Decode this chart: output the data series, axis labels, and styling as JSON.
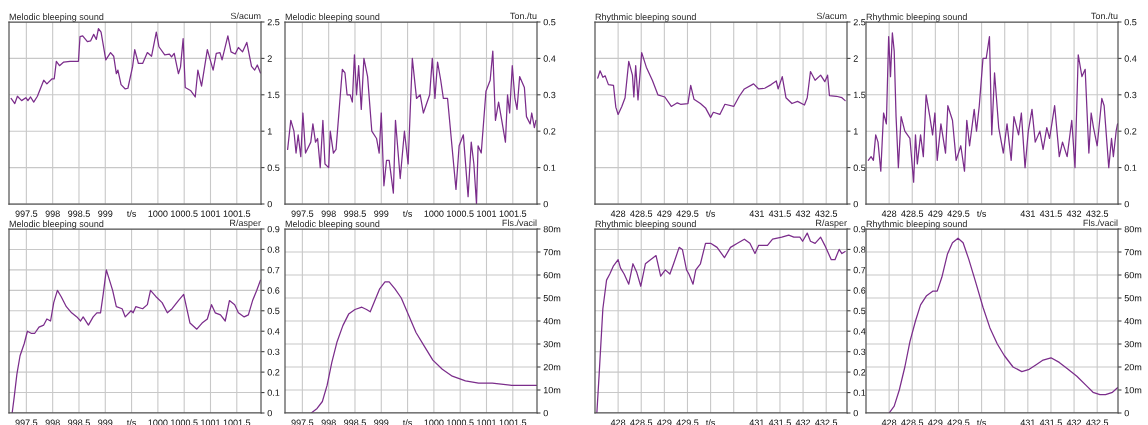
{
  "chart_data": [
    {
      "type": "line",
      "title": "Melodic bleeping sound",
      "ylabel": "S/acum",
      "grid": true,
      "xlim": [
        997.17,
        1001.96
      ],
      "ylim": [
        0,
        2.5
      ],
      "xticks": [
        997.5,
        998,
        998.5,
        999,
        {
          "value": 999.5,
          "label": "t/s"
        },
        1000,
        1000.5,
        1001,
        1001.5
      ],
      "yticks": [
        0,
        0.5,
        1,
        1.5,
        2,
        2.5
      ],
      "x": [
        997.21,
        997.28,
        997.33,
        997.41,
        997.49,
        997.53,
        997.58,
        997.64,
        997.71,
        997.83,
        997.89,
        997.99,
        998.03,
        998.07,
        998.13,
        998.21,
        998.33,
        998.47,
        998.49,
        998.52,
        998.57,
        998.66,
        998.72,
        998.78,
        998.83,
        998.87,
        998.92,
        999.01,
        999.1,
        999.16,
        999.21,
        999.24,
        999.3,
        999.38,
        999.43,
        999.52,
        999.56,
        999.63,
        999.71,
        999.8,
        999.88,
        999.97,
        1000.02,
        1000.13,
        1000.22,
        1000.26,
        1000.31,
        1000.39,
        1000.43,
        1000.48,
        1000.52,
        1000.62,
        1000.71,
        1000.76,
        1000.83,
        1000.94,
        1001.05,
        1001.11,
        1001.18,
        1001.22,
        1001.33,
        1001.39,
        1001.47,
        1001.53,
        1001.61,
        1001.69,
        1001.78,
        1001.84,
        1001.89,
        1001.95
      ],
      "series": [
        {
          "color": "#7b2d8b",
          "values": [
            1.45,
            1.38,
            1.48,
            1.42,
            1.46,
            1.42,
            1.47,
            1.4,
            1.48,
            1.7,
            1.65,
            1.72,
            1.72,
            1.96,
            1.9,
            1.95,
            1.96,
            1.96,
            1.96,
            2.3,
            2.31,
            2.23,
            2.24,
            2.33,
            2.26,
            2.41,
            2.36,
            1.98,
            2.08,
            2.03,
            1.79,
            1.84,
            1.64,
            1.58,
            1.59,
            1.89,
            2.12,
            1.93,
            1.93,
            2.08,
            2.03,
            2.36,
            2.16,
            2.05,
            2.06,
            2.02,
            2.07,
            1.79,
            1.88,
            2.27,
            1.6,
            1.56,
            1.47,
            1.84,
            1.62,
            2.12,
            1.84,
            2.07,
            2.08,
            1.98,
            2.31,
            2.09,
            2.06,
            2.15,
            2.09,
            2.22,
            1.89,
            1.84,
            1.91,
            1.8
          ]
        }
      ]
    },
    {
      "type": "line",
      "title": "Melodic bleeping sound",
      "ylabel": "Ton./tu",
      "grid": true,
      "xlim": [
        997.17,
        1001.96
      ],
      "ylim": [
        0,
        0.5
      ],
      "xticks": [
        997.5,
        998,
        998.5,
        999,
        {
          "value": 999.5,
          "label": "t/s"
        },
        1000,
        1000.5,
        1001,
        1001.5
      ],
      "yticks": [
        0,
        0.1,
        0.2,
        0.3,
        0.4,
        0.5
      ],
      "x": [
        997.22,
        997.28,
        997.34,
        997.38,
        997.42,
        997.47,
        997.51,
        997.56,
        997.66,
        997.7,
        997.75,
        997.79,
        997.84,
        997.89,
        997.93,
        998.0,
        998.03,
        998.09,
        998.14,
        998.26,
        998.31,
        998.35,
        998.41,
        998.45,
        998.49,
        998.53,
        998.57,
        998.62,
        998.67,
        998.74,
        998.82,
        998.91,
        998.96,
        999.0,
        999.05,
        999.1,
        999.15,
        999.23,
        999.27,
        999.36,
        999.44,
        999.51,
        999.59,
        999.67,
        999.74,
        999.8,
        999.92,
        999.97,
        1000.02,
        1000.07,
        1000.13,
        1000.18,
        1000.26,
        1000.42,
        1000.48,
        1000.56,
        1000.65,
        1000.71,
        1000.76,
        1000.81,
        1000.84,
        1000.9,
        1000.99,
        1001.07,
        1001.12,
        1001.17,
        1001.23,
        1001.29,
        1001.36,
        1001.4,
        1001.44,
        1001.49,
        1001.54,
        1001.58,
        1001.63,
        1001.72,
        1001.76,
        1001.83,
        1001.86,
        1001.91,
        1001.94
      ],
      "series": [
        {
          "color": "#7b2d8b",
          "values": [
            0.15,
            0.23,
            0.2,
            0.14,
            0.19,
            0.13,
            0.25,
            0.14,
            0.17,
            0.22,
            0.17,
            0.18,
            0.1,
            0.23,
            0.11,
            0.1,
            0.2,
            0.14,
            0.15,
            0.37,
            0.36,
            0.3,
            0.3,
            0.28,
            0.41,
            0.3,
            0.38,
            0.26,
            0.4,
            0.35,
            0.2,
            0.18,
            0.14,
            0.25,
            0.05,
            0.12,
            0.12,
            0.03,
            0.23,
            0.07,
            0.2,
            0.11,
            0.4,
            0.29,
            0.3,
            0.25,
            0.3,
            0.4,
            0.29,
            0.39,
            0.34,
            0.29,
            0.29,
            0.04,
            0.16,
            0.19,
            0.02,
            0.17,
            0.11,
            0.0,
            0.16,
            0.14,
            0.31,
            0.34,
            0.42,
            0.23,
            0.28,
            0.23,
            0.17,
            0.3,
            0.25,
            0.38,
            0.29,
            0.26,
            0.35,
            0.32,
            0.24,
            0.22,
            0.25,
            0.21,
            0.23
          ]
        }
      ]
    },
    {
      "type": "line",
      "title": "Rhythmic bleeping sound",
      "ylabel": "S/acum",
      "grid": true,
      "xlim": [
        427.5,
        432.95
      ],
      "ylim": [
        0,
        2.5
      ],
      "xticks": [
        428,
        428.5,
        429,
        429.5,
        {
          "value": 430,
          "label": "t/s"
        },
        {
          "value": 430.5,
          "label": null
        },
        431,
        431.5,
        432,
        432.5
      ],
      "yticks": [
        0,
        0.5,
        1,
        1.5,
        2,
        2.5
      ],
      "x": [
        427.56,
        427.61,
        427.67,
        427.72,
        427.79,
        427.9,
        427.95,
        428.0,
        428.08,
        428.15,
        428.23,
        428.31,
        428.34,
        428.38,
        428.43,
        428.51,
        428.61,
        428.74,
        428.86,
        429.01,
        429.15,
        429.28,
        429.35,
        429.51,
        429.57,
        429.64,
        429.78,
        429.89,
        430.0,
        430.06,
        430.2,
        430.31,
        430.5,
        430.62,
        430.73,
        430.93,
        431.04,
        431.17,
        431.31,
        431.42,
        431.46,
        431.55,
        431.63,
        431.76,
        431.88,
        432.03,
        432.09,
        432.16,
        432.26,
        432.38,
        432.47,
        432.53,
        432.57,
        432.72,
        432.84,
        432.91
      ],
      "series": [
        {
          "color": "#7b2d8b",
          "values": [
            1.73,
            1.83,
            1.74,
            1.76,
            1.64,
            1.63,
            1.33,
            1.23,
            1.34,
            1.46,
            1.96,
            1.77,
            1.47,
            1.9,
            1.43,
            2.08,
            1.88,
            1.7,
            1.5,
            1.47,
            1.34,
            1.39,
            1.37,
            1.38,
            1.63,
            1.44,
            1.38,
            1.32,
            1.19,
            1.26,
            1.23,
            1.37,
            1.34,
            1.48,
            1.58,
            1.65,
            1.58,
            1.59,
            1.64,
            1.69,
            1.58,
            1.75,
            1.46,
            1.38,
            1.41,
            1.36,
            1.46,
            1.82,
            1.7,
            1.77,
            1.68,
            1.77,
            1.49,
            1.48,
            1.46,
            1.42
          ]
        }
      ]
    },
    {
      "type": "line",
      "title": "Rhythmic bleeping sound",
      "ylabel": "Ton./tu",
      "grid": true,
      "xlim": [
        427.5,
        432.95
      ],
      "ylim": [
        0,
        0.5
      ],
      "xticks": [
        428,
        428.5,
        429,
        429.5,
        {
          "value": 430,
          "label": "t/s"
        },
        {
          "value": 430.5,
          "label": null
        },
        431,
        431.5,
        432,
        432.5
      ],
      "yticks": [
        0,
        0.1,
        0.2,
        0.3,
        0.4,
        0.5
      ],
      "x": [
        427.55,
        427.61,
        427.66,
        427.71,
        427.76,
        427.82,
        427.88,
        427.94,
        427.99,
        428.03,
        428.07,
        428.11,
        428.15,
        428.2,
        428.26,
        428.34,
        428.45,
        428.53,
        428.57,
        428.61,
        428.68,
        428.74,
        428.8,
        428.88,
        428.94,
        428.99,
        429.04,
        429.12,
        429.22,
        429.27,
        429.37,
        429.45,
        429.55,
        429.63,
        429.68,
        429.74,
        429.84,
        429.89,
        429.95,
        430.03,
        430.1,
        430.17,
        430.22,
        430.28,
        430.37,
        430.47,
        430.55,
        430.64,
        430.7,
        430.8,
        430.86,
        430.94,
        431.01,
        431.09,
        431.16,
        431.26,
        431.33,
        431.41,
        431.47,
        431.58,
        431.68,
        431.75,
        431.85,
        431.95,
        432.02,
        432.09,
        432.17,
        432.24,
        432.32,
        432.37,
        432.42,
        432.5,
        432.6,
        432.65,
        432.75,
        432.81,
        432.85,
        432.91,
        432.94
      ],
      "series": [
        {
          "color": "#7b2d8b",
          "values": [
            0.12,
            0.13,
            0.12,
            0.19,
            0.17,
            0.09,
            0.25,
            0.22,
            0.46,
            0.35,
            0.47,
            0.42,
            0.24,
            0.1,
            0.24,
            0.2,
            0.18,
            0.06,
            0.19,
            0.11,
            0.19,
            0.13,
            0.3,
            0.24,
            0.19,
            0.25,
            0.12,
            0.22,
            0.14,
            0.27,
            0.23,
            0.12,
            0.16,
            0.09,
            0.23,
            0.16,
            0.26,
            0.2,
            0.27,
            0.4,
            0.4,
            0.46,
            0.19,
            0.36,
            0.21,
            0.14,
            0.22,
            0.12,
            0.24,
            0.19,
            0.25,
            0.1,
            0.2,
            0.26,
            0.17,
            0.2,
            0.15,
            0.21,
            0.18,
            0.27,
            0.13,
            0.17,
            0.13,
            0.23,
            0.1,
            0.41,
            0.35,
            0.37,
            0.14,
            0.25,
            0.21,
            0.16,
            0.29,
            0.27,
            0.1,
            0.18,
            0.13,
            0.2,
            0.22
          ]
        }
      ]
    },
    {
      "type": "line",
      "title": "Melodic bleeping sound",
      "ylabel": "R/asper",
      "grid": true,
      "xlim": [
        997.17,
        1001.96
      ],
      "ylim": [
        0,
        0.9
      ],
      "xticks": [
        997.5,
        998,
        998.5,
        999,
        {
          "value": 999.5,
          "label": "t/s"
        },
        1000,
        1000.5,
        1001,
        1001.5
      ],
      "yticks": [
        0,
        0.1,
        0.2,
        0.3,
        0.4,
        0.5,
        0.6,
        0.7,
        0.8,
        0.9
      ],
      "x": [
        997.23,
        997.27,
        997.32,
        997.38,
        997.46,
        997.52,
        997.59,
        997.66,
        997.74,
        997.83,
        997.89,
        997.96,
        998.02,
        998.09,
        998.16,
        998.26,
        998.36,
        998.46,
        998.53,
        998.58,
        998.68,
        998.77,
        998.84,
        998.91,
        998.96,
        999.02,
        999.08,
        999.14,
        999.21,
        999.32,
        999.38,
        999.49,
        999.53,
        999.58,
        999.71,
        999.8,
        999.86,
        999.96,
        1000.08,
        1000.18,
        1000.27,
        1000.39,
        1000.49,
        1000.61,
        1000.74,
        1000.84,
        1000.94,
        1001.02,
        1001.09,
        1001.19,
        1001.28,
        1001.36,
        1001.46,
        1001.53,
        1001.64,
        1001.72,
        1001.8,
        1001.88,
        1001.95
      ],
      "series": [
        {
          "color": "#7b2d8b",
          "values": [
            0.0,
            0.08,
            0.19,
            0.28,
            0.34,
            0.4,
            0.39,
            0.39,
            0.42,
            0.43,
            0.46,
            0.45,
            0.54,
            0.6,
            0.57,
            0.52,
            0.49,
            0.47,
            0.45,
            0.47,
            0.43,
            0.47,
            0.49,
            0.49,
            0.58,
            0.7,
            0.65,
            0.6,
            0.52,
            0.51,
            0.47,
            0.5,
            0.49,
            0.52,
            0.51,
            0.53,
            0.6,
            0.57,
            0.54,
            0.49,
            0.51,
            0.55,
            0.58,
            0.44,
            0.41,
            0.44,
            0.46,
            0.53,
            0.49,
            0.48,
            0.45,
            0.55,
            0.53,
            0.49,
            0.47,
            0.48,
            0.55,
            0.6,
            0.65
          ]
        }
      ]
    },
    {
      "type": "line",
      "title": "Melodic bleeping sound",
      "ylabel": "Fls./vacil",
      "grid": true,
      "xlim": [
        997.17,
        1001.96
      ],
      "ylim": [
        0,
        80
      ],
      "xticks": [
        997.5,
        998,
        998.5,
        999,
        {
          "value": 999.5,
          "label": "t/s"
        },
        1000,
        1000.5,
        1001,
        1001.5
      ],
      "yticks": [
        0,
        {
          "value": 10,
          "label": "10m"
        },
        {
          "value": 20,
          "label": "20m"
        },
        {
          "value": 30,
          "label": "30m"
        },
        {
          "value": 40,
          "label": "40m"
        },
        {
          "value": 50,
          "label": "50m"
        },
        {
          "value": 60,
          "label": "60m"
        },
        {
          "value": 70,
          "label": "70m"
        },
        {
          "value": 80,
          "label": "80m"
        }
      ],
      "x": [
        997.67,
        997.78,
        997.88,
        997.97,
        998.06,
        998.16,
        998.27,
        998.38,
        998.5,
        998.63,
        998.72,
        998.79,
        998.88,
        998.97,
        999.07,
        999.15,
        999.26,
        999.38,
        999.51,
        999.66,
        999.82,
        999.98,
        1000.16,
        1000.35,
        1000.6,
        1000.85,
        1001.11,
        1001.48,
        1001.95
      ],
      "series": [
        {
          "color": "#7b2d8b",
          "values": [
            0,
            2,
            5,
            12,
            22,
            31,
            38,
            43,
            45,
            46,
            45,
            44,
            49,
            54,
            57,
            57,
            54,
            50,
            43,
            35,
            29,
            23,
            19,
            16,
            14,
            13,
            13,
            12,
            12
          ]
        }
      ]
    },
    {
      "type": "line",
      "title": "Rhythmic bleeping sound",
      "ylabel": "R/asper",
      "grid": true,
      "xlim": [
        427.5,
        432.95
      ],
      "ylim": [
        0,
        0.9
      ],
      "xticks": [
        428,
        428.5,
        429,
        429.5,
        {
          "value": 430,
          "label": "t/s"
        },
        {
          "value": 430.5,
          "label": null
        },
        431,
        431.5,
        432,
        432.5
      ],
      "yticks": [
        0,
        0.1,
        0.2,
        0.3,
        0.4,
        0.5,
        0.6,
        0.7,
        0.8,
        0.9
      ],
      "x": [
        427.54,
        427.59,
        427.67,
        427.75,
        427.82,
        427.9,
        428.0,
        428.05,
        428.13,
        428.23,
        428.32,
        428.4,
        428.49,
        428.59,
        428.7,
        428.82,
        428.92,
        429.02,
        429.12,
        429.2,
        429.32,
        429.39,
        429.48,
        429.53,
        429.62,
        429.68,
        429.78,
        429.89,
        430.0,
        430.14,
        430.3,
        430.43,
        430.58,
        430.73,
        430.85,
        430.96,
        431.04,
        431.23,
        431.34,
        431.54,
        431.69,
        431.8,
        431.93,
        431.99,
        432.09,
        432.16,
        432.26,
        432.38,
        432.47,
        432.61,
        432.69,
        432.78,
        432.84,
        432.91
      ],
      "series": [
        {
          "color": "#7b2d8b",
          "values": [
            0.0,
            0.19,
            0.51,
            0.65,
            0.68,
            0.72,
            0.75,
            0.71,
            0.68,
            0.63,
            0.73,
            0.69,
            0.62,
            0.73,
            0.75,
            0.77,
            0.67,
            0.7,
            0.68,
            0.73,
            0.81,
            0.8,
            0.7,
            0.68,
            0.63,
            0.7,
            0.73,
            0.83,
            0.83,
            0.81,
            0.76,
            0.81,
            0.83,
            0.85,
            0.83,
            0.78,
            0.82,
            0.82,
            0.85,
            0.86,
            0.87,
            0.86,
            0.86,
            0.84,
            0.88,
            0.84,
            0.83,
            0.86,
            0.82,
            0.75,
            0.75,
            0.8,
            0.78,
            0.79
          ]
        }
      ]
    },
    {
      "type": "line",
      "title": "Rhythmic bleeping sound",
      "ylabel": "Fls./vacil",
      "grid": true,
      "xlim": [
        427.5,
        432.95
      ],
      "ylim": [
        0,
        80
      ],
      "xticks": [
        428,
        428.5,
        429,
        429.5,
        {
          "value": 430,
          "label": "t/s"
        },
        {
          "value": 430.5,
          "label": null
        },
        431,
        431.5,
        432,
        432.5
      ],
      "yticks": [
        0,
        {
          "value": 10,
          "label": "10m"
        },
        {
          "value": 20,
          "label": "20m"
        },
        {
          "value": 30,
          "label": "30m"
        },
        {
          "value": 40,
          "label": "40m"
        },
        {
          "value": 50,
          "label": "50m"
        },
        {
          "value": 60,
          "label": "60m"
        },
        {
          "value": 70,
          "label": "70m"
        },
        {
          "value": 80,
          "label": "80m"
        }
      ],
      "x": [
        428.0,
        428.11,
        428.22,
        428.34,
        428.45,
        428.57,
        428.68,
        428.81,
        428.95,
        429.04,
        429.14,
        429.26,
        429.37,
        429.49,
        429.6,
        429.72,
        429.87,
        430.03,
        430.18,
        430.34,
        430.49,
        430.68,
        430.87,
        431.03,
        431.18,
        431.33,
        431.5,
        431.68,
        431.87,
        432.06,
        432.26,
        432.41,
        432.56,
        432.68,
        432.83,
        432.94
      ],
      "series": [
        {
          "color": "#7b2d8b",
          "values": [
            0,
            3,
            10,
            20,
            31,
            40,
            47,
            51,
            53,
            53,
            59,
            69,
            74,
            76,
            74,
            67,
            57,
            46,
            37,
            30,
            25,
            20,
            18,
            19,
            21,
            23,
            24,
            22,
            19,
            16,
            12,
            9,
            8,
            8,
            9,
            11
          ]
        }
      ]
    }
  ]
}
